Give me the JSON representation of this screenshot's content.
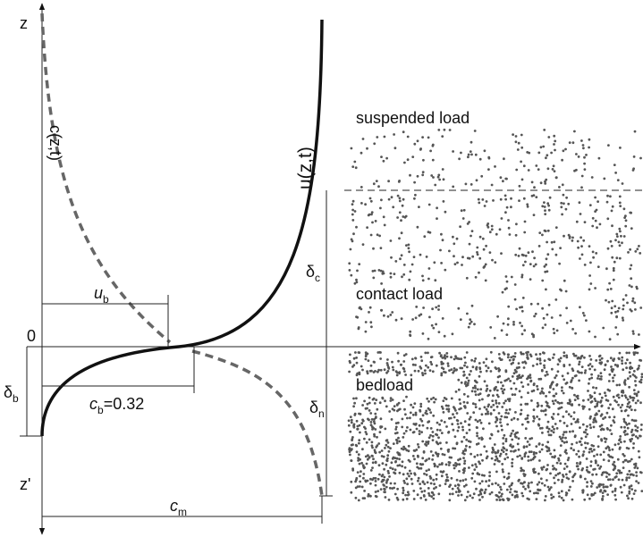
{
  "axes": {
    "z": "z",
    "z_prime": "z'",
    "origin": "0"
  },
  "curves": {
    "concentration": "c(z,t)",
    "velocity": "u(z,t)"
  },
  "layers": {
    "suspended": "suspended load",
    "contact": "contact load",
    "bed": "bedload"
  },
  "dimensions": {
    "u_b": {
      "main": "u",
      "sub": "b"
    },
    "c_b": {
      "main": "c",
      "sub": "b",
      "rest": "=0.32"
    },
    "c_m": {
      "main": "c",
      "sub": "m"
    },
    "delta_b": {
      "main": "δ",
      "sub": "b"
    },
    "delta_c": {
      "main": "δ",
      "sub": "c"
    },
    "delta_n": {
      "main": "δ",
      "sub": "n"
    }
  }
}
